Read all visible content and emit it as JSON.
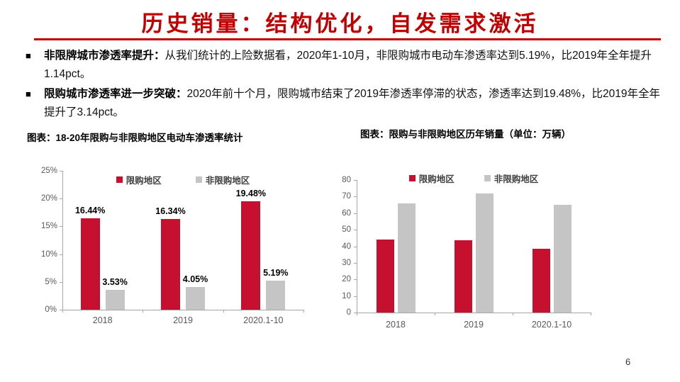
{
  "title": "历史销量：结构优化，自发需求激活",
  "bullets": [
    {
      "marker": "■",
      "lead": "非限牌城市渗透率提升：",
      "text": "从我们统计的上险数据看，2020年1-10月，非限购城市电动车渗透率达到5.19%，比2019年全年提升1.14pct。"
    },
    {
      "marker": "■",
      "lead": "限购城市渗透率进一步突破：",
      "text": "2020年前十个月，限购城市结束了2019年渗透率停滞的状态，渗透率达到19.48%，比2019年全年提升了3.14pct。"
    }
  ],
  "colors": {
    "accent_red": "#c00000",
    "bar_red": "#c5102f",
    "bar_gray": "#c5c5c5",
    "axis_gray": "#a6a6a6"
  },
  "chart_data": [
    {
      "type": "bar",
      "caption": "图表：18-20年限购与非限购地区电动车渗透率统计",
      "categories": [
        "2018",
        "2019",
        "2020.1-10"
      ],
      "series": [
        {
          "name": "限购地区",
          "color": "#c5102f",
          "values": [
            16.44,
            16.34,
            19.48
          ],
          "labels": [
            "16.44%",
            "16.34%",
            "19.48%"
          ]
        },
        {
          "name": "非限购地区",
          "color": "#c5c5c5",
          "values": [
            3.53,
            4.05,
            5.19
          ],
          "labels": [
            "3.53%",
            "4.05%",
            "5.19%"
          ]
        }
      ],
      "ylim": [
        0,
        25
      ],
      "ytick_step": 5,
      "ytick_suffix": "%",
      "legend_position": "top",
      "grid": false
    },
    {
      "type": "bar",
      "caption": "图表：限购与非限购地区历年销量（单位：万辆）",
      "categories": [
        "2018",
        "2019",
        "2020.1-10"
      ],
      "series": [
        {
          "name": "限购地区",
          "color": "#c5102f",
          "values": [
            44,
            43.5,
            38.5
          ]
        },
        {
          "name": "非限购地区",
          "color": "#c5c5c5",
          "values": [
            66,
            72,
            65
          ]
        }
      ],
      "ylim": [
        0,
        80
      ],
      "ytick_step": 10,
      "ytick_suffix": "",
      "legend_position": "top",
      "grid": false
    }
  ],
  "page_number": "6"
}
